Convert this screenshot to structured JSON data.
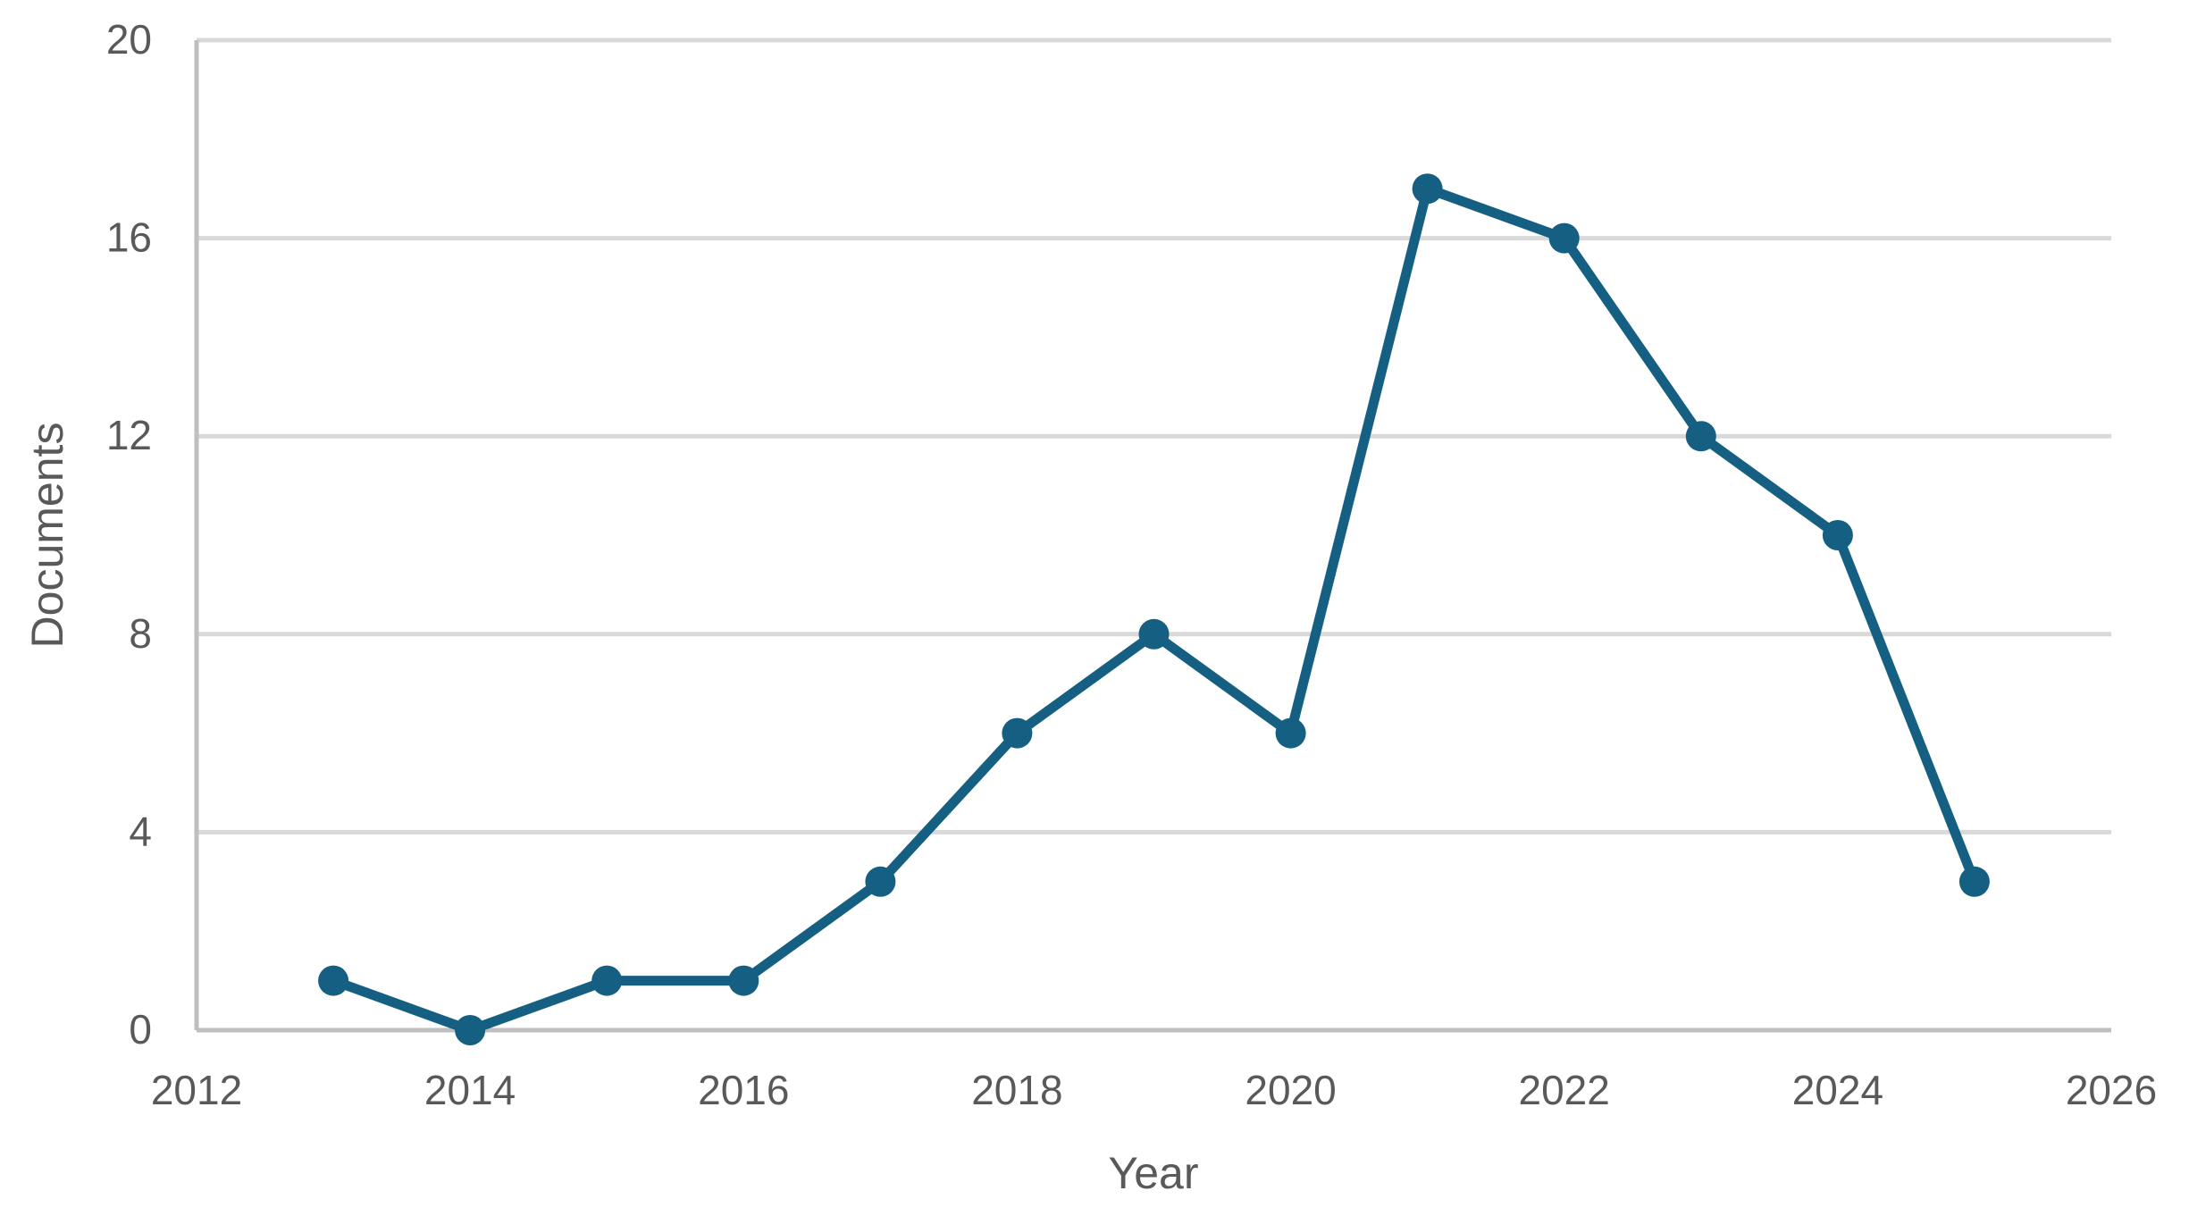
{
  "chart_data": {
    "type": "line",
    "title": "",
    "xlabel": "Year",
    "ylabel": "Documents",
    "series_name": "Documents",
    "x": [
      2013,
      2014,
      2015,
      2016,
      2017,
      2018,
      2019,
      2020,
      2021,
      2022,
      2023,
      2024,
      2025
    ],
    "values": [
      1,
      0,
      1,
      1,
      3,
      6,
      8,
      6,
      17,
      16,
      12,
      10,
      3
    ],
    "xlim": [
      2012,
      2026
    ],
    "ylim": [
      0,
      20
    ],
    "x_ticks": [
      "2012",
      "2014",
      "2016",
      "2018",
      "2020",
      "2022",
      "2024",
      "2026"
    ],
    "x_tick_values": [
      2012,
      2014,
      2016,
      2018,
      2020,
      2022,
      2024,
      2026
    ],
    "y_ticks": [
      "0",
      "4",
      "8",
      "12",
      "16",
      "20"
    ],
    "y_tick_values": [
      0,
      4,
      8,
      12,
      16,
      20
    ],
    "grid": "horizontal-only",
    "legend": "none",
    "marker": "circle"
  },
  "colors": {
    "series_line": "#156082",
    "marker_fill": "#156082",
    "gridline": "#D9D9D9",
    "axis_line": "#BFBFBF",
    "tick_text": "#595959",
    "background": "#FFFFFF"
  }
}
